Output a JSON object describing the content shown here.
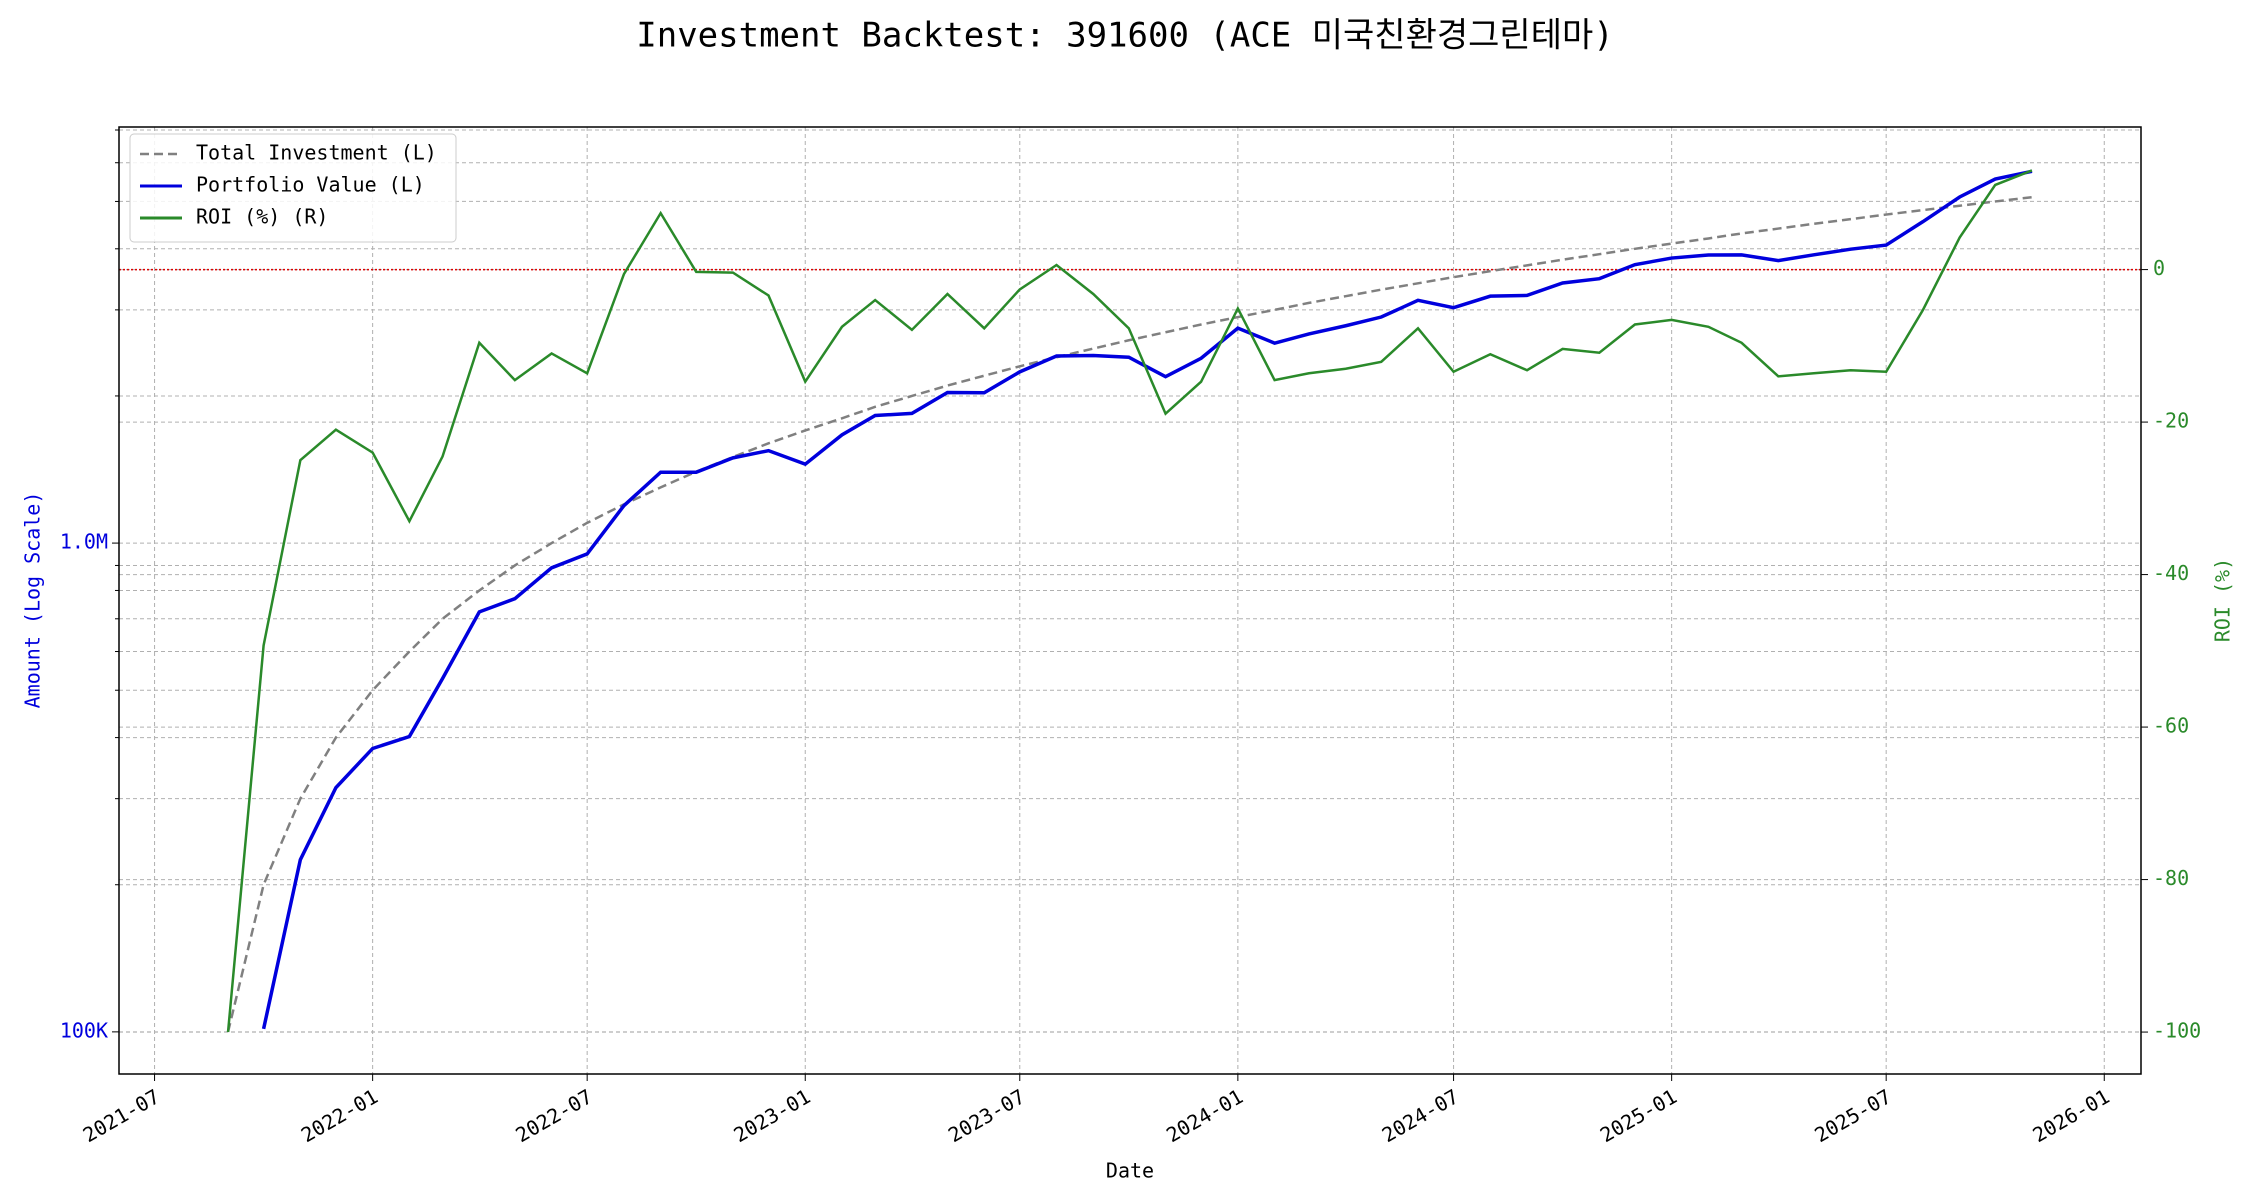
{
  "chart_data": {
    "type": "line",
    "title": "Investment Backtest: 391600 (ACE 미국친환경그린테마)",
    "xlabel": "Date",
    "ylabel": "Amount (Log Scale)",
    "y2label": "ROI (%)",
    "x": [
      "2021-09",
      "2021-10",
      "2021-11",
      "2021-12",
      "2022-01",
      "2022-02",
      "2022-03",
      "2022-04",
      "2022-05",
      "2022-06",
      "2022-07",
      "2022-08",
      "2022-09",
      "2022-10",
      "2022-11",
      "2022-12",
      "2023-01",
      "2023-02",
      "2023-03",
      "2023-04",
      "2023-05",
      "2023-06",
      "2023-07",
      "2023-08",
      "2023-09",
      "2023-10",
      "2023-11",
      "2023-12",
      "2024-01",
      "2024-02",
      "2024-03",
      "2024-04",
      "2024-05",
      "2024-06",
      "2024-07",
      "2024-08",
      "2024-09",
      "2024-10",
      "2024-11",
      "2024-12",
      "2025-01",
      "2025-02",
      "2025-03",
      "2025-04",
      "2025-05",
      "2025-06",
      "2025-07",
      "2025-08",
      "2025-09",
      "2025-10",
      "2025-11"
    ],
    "series": [
      {
        "name": "Total Investment (L)",
        "color": "#808080",
        "dash": true,
        "axis": "y",
        "values": [
          100000,
          200000,
          300000,
          400000,
          500000,
          600000,
          700000,
          800000,
          900000,
          1000000,
          1100000,
          1200000,
          1300000,
          1400000,
          1500000,
          1600000,
          1700000,
          1800000,
          1900000,
          2000000,
          2100000,
          2200000,
          2300000,
          2400000,
          2500000,
          2600000,
          2700000,
          2800000,
          2900000,
          3000000,
          3100000,
          3200000,
          3300000,
          3400000,
          3500000,
          3600000,
          3700000,
          3800000,
          3900000,
          4000000,
          4100000,
          4200000,
          4300000,
          4400000,
          4500000,
          4600000,
          4700000,
          4800000,
          4900000,
          5000000,
          5100000
        ]
      },
      {
        "name": "Portfolio Value (L)",
        "color": "#0000dd",
        "dash": false,
        "axis": "y",
        "values": [
          null,
          101400,
          225000,
          316000,
          380000,
          402000,
          528500,
          723200,
          769500,
          890000,
          950400,
          1192800,
          1396200,
          1395800,
          1494000,
          1545600,
          1450100,
          1665000,
          1824000,
          1842000,
          2032800,
          2030600,
          2240200,
          2414400,
          2420000,
          2399800,
          2189700,
          2388400,
          2752100,
          2565000,
          2678400,
          2784000,
          2900700,
          3138200,
          3031000,
          3200400,
          3211600,
          3404800,
          3474900,
          3712000,
          3829400,
          3885000,
          3887200,
          3784000,
          3888000,
          3992800,
          4070200,
          4545600,
          5105800,
          5555000,
          5763000
        ]
      },
      {
        "name": "ROI (%) (R)",
        "color": "#2a8a2a",
        "dash": false,
        "axis": "y2",
        "values": [
          -100,
          -49.3,
          -25,
          -21,
          -24,
          -33,
          -24.5,
          -9.6,
          -14.5,
          -11,
          -13.6,
          -0.6,
          7.4,
          -0.3,
          -0.4,
          -3.4,
          -14.7,
          -7.5,
          -4,
          -7.9,
          -3.2,
          -7.7,
          -2.6,
          0.6,
          -3.2,
          -7.7,
          -18.9,
          -14.7,
          -5.1,
          -14.5,
          -13.6,
          -13,
          -12.1,
          -7.7,
          -13.4,
          -11.1,
          -13.2,
          -10.4,
          -10.9,
          -7.2,
          -6.6,
          -7.5,
          -9.6,
          -14,
          -13.6,
          -13.2,
          -13.4,
          -5.3,
          4.2,
          11.1,
          13
        ]
      }
    ],
    "xlim": [
      "2021-06",
      "2026-02"
    ],
    "xticks": [
      "2021-07",
      "2022-01",
      "2022-07",
      "2023-01",
      "2023-07",
      "2024-01",
      "2024-07",
      "2025-01",
      "2025-07",
      "2026-01"
    ],
    "ylim": [
      82000,
      7100000
    ],
    "log_y": true,
    "yticks": [
      {
        "value": 100000,
        "label": "100K"
      },
      {
        "value": 1000000,
        "label": "1.0M"
      }
    ],
    "yminorticks": [
      200000,
      300000,
      400000,
      500000,
      600000,
      700000,
      800000,
      900000,
      2000000,
      3000000,
      4000000,
      5000000,
      6000000,
      7000000
    ],
    "y2lim": [
      -105.5,
      18.7
    ],
    "y2ticks": [
      0,
      -20,
      -40,
      -60,
      -80,
      -100
    ],
    "hline": {
      "axis": "y2",
      "value": 0,
      "color": "#dd0000"
    },
    "grid": true,
    "legend": "upper left"
  }
}
